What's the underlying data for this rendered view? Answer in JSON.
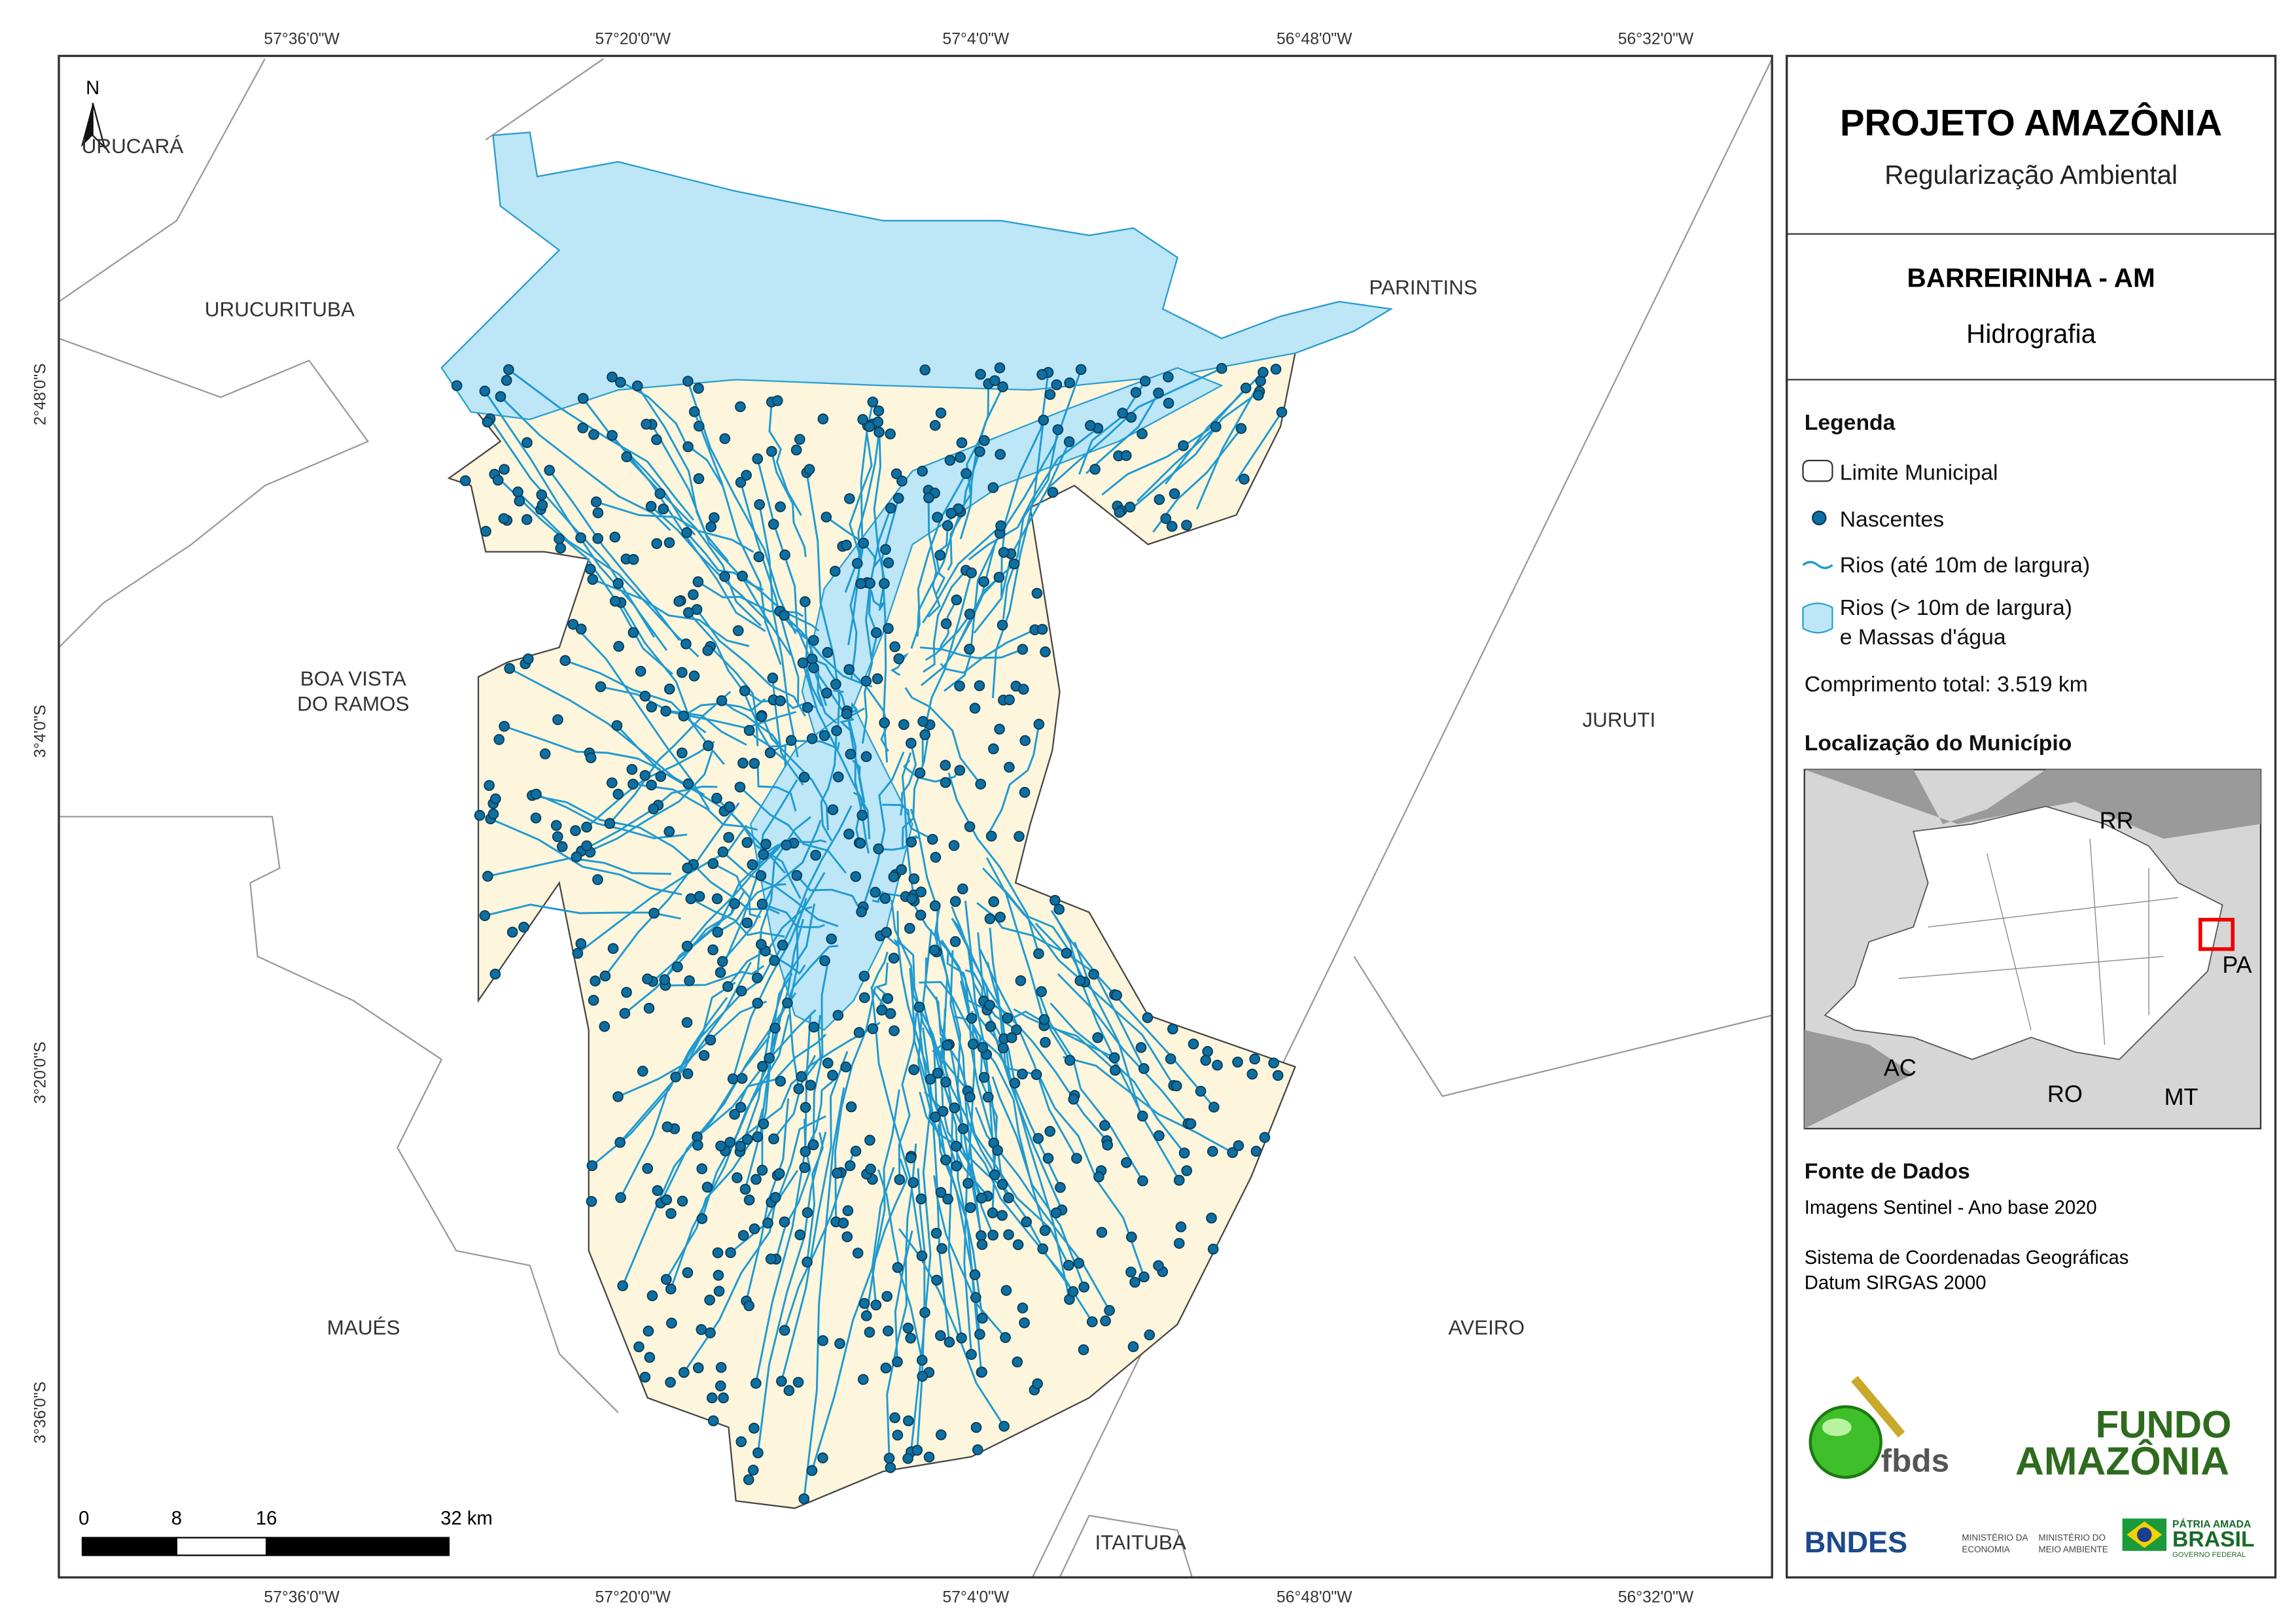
{
  "map": {
    "top_labels": [
      "57°36'0\"W",
      "57°20'0\"W",
      "57°4'0\"W",
      "56°48'0\"W",
      "56°32'0\"W"
    ],
    "bottom_labels": [
      "57°36'0\"W",
      "57°20'0\"W",
      "57°4'0\"W",
      "56°48'0\"W",
      "56°32'0\"W"
    ],
    "left_labels": [
      "2°48'0\"S",
      "3°4'0\"S",
      "3°20'0\"S",
      "3°36'0\"S"
    ],
    "north": "N",
    "places": {
      "urucara": "URUCARÁ",
      "urucurituba": "URUCURITUBA",
      "parintins": "PARINTINS",
      "boa_vista": [
        "BOA VISTA",
        "DO RAMOS"
      ],
      "juruti": "JURUTI",
      "maues": "MAUÉS",
      "aveiro": "AVEIRO",
      "itaituba": "ITAITUBA"
    },
    "scale": [
      "0",
      "8",
      "16",
      "32 km"
    ]
  },
  "panel": {
    "title": "PROJETO AMAZÔNIA",
    "subtitle": "Regularização Ambiental",
    "municipality": "BARREIRINHA - AM",
    "theme": "Hidrografia",
    "legend": {
      "title": "Legenda",
      "items": [
        "Limite Municipal",
        "Nascentes",
        "Rios (até 10m de largura)",
        [
          "Rios (> 10m de largura)",
          "e Massas d'água"
        ]
      ],
      "total": "Comprimento total:  3.519 km"
    },
    "location": {
      "title": "Localização do Município",
      "states": [
        "RR",
        "PA",
        "AC",
        "RO",
        "MT"
      ]
    },
    "source": {
      "title": "Fonte de Dados",
      "lines": [
        "Imagens Sentinel - Ano base 2020",
        "Sistema de Coordenadas Geográficas",
        "Datum SIRGAS 2000"
      ]
    },
    "logos": {
      "fbds": "fbds",
      "fundo": [
        "FUNDO",
        "AMAZÔNIA"
      ],
      "bndes": "BNDES",
      "min1": [
        "MINISTÉRIO DA",
        "ECONOMIA"
      ],
      "min2": [
        "MINISTÉRIO DO",
        "MEIO AMBIENTE"
      ],
      "brasil": [
        "PÁTRIA AMADA",
        "BRASIL",
        "GOVERNO FEDERAL"
      ]
    }
  }
}
